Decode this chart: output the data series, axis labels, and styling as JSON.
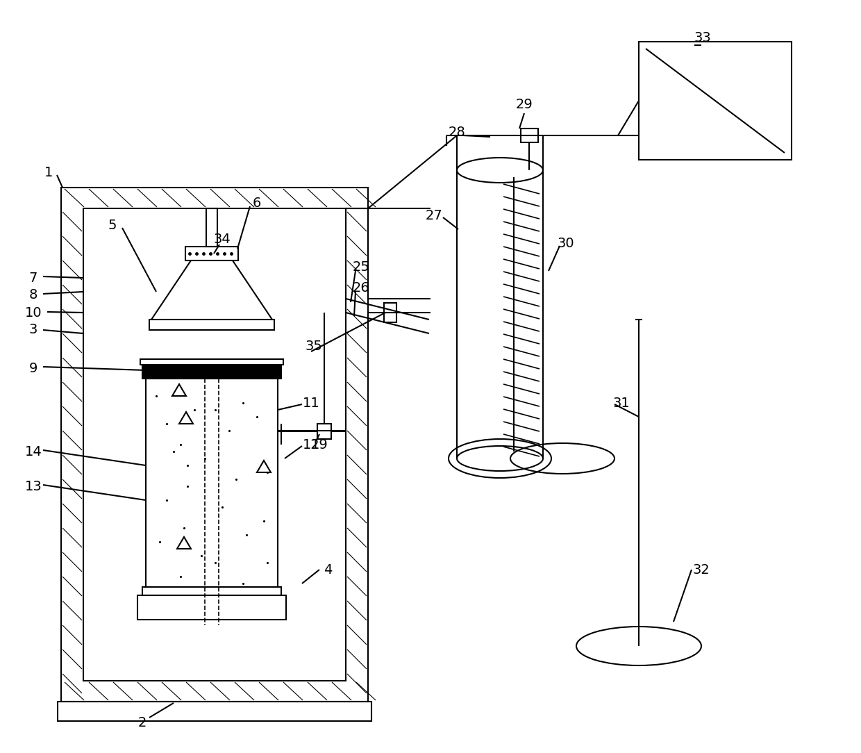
{
  "bg_color": "#ffffff",
  "line_color": "#000000",
  "lw": 1.5,
  "lw_thick": 2.0,
  "figsize": [
    12.4,
    10.84
  ],
  "dpi": 100
}
